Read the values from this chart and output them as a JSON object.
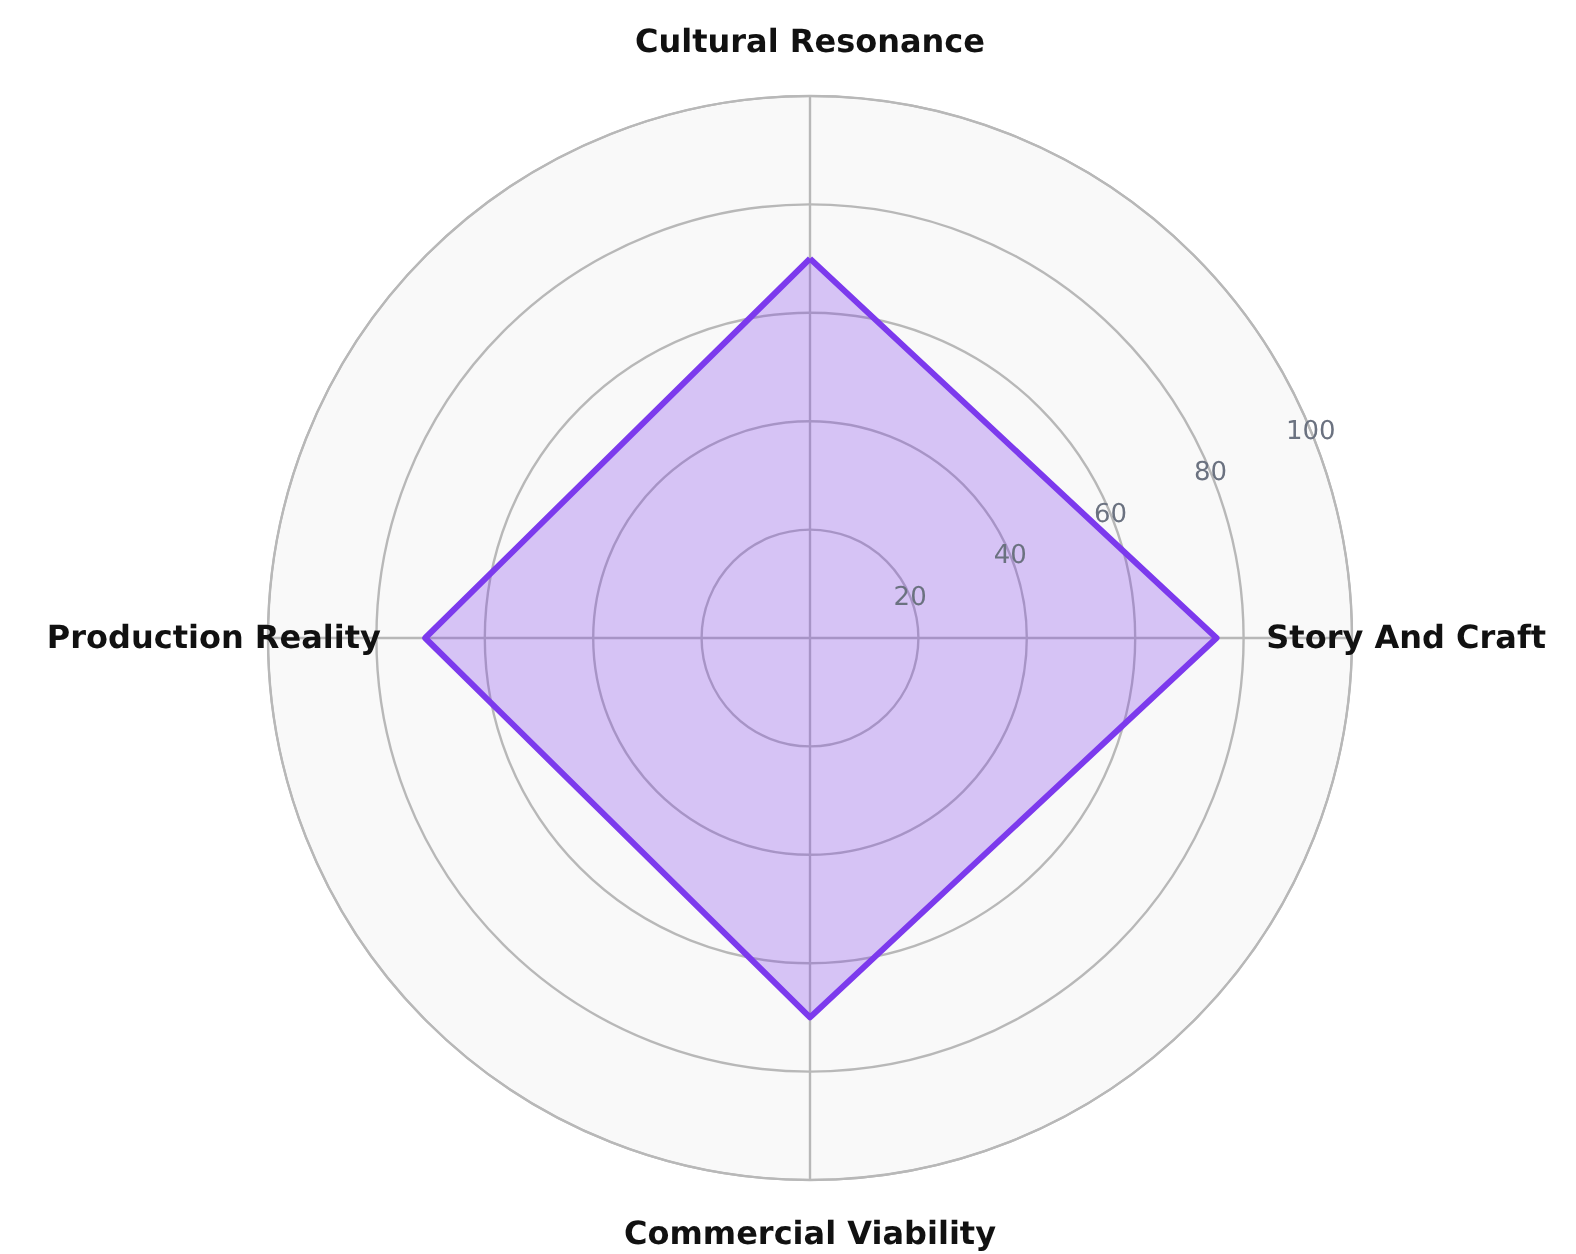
{
  "chart_data": {
    "type": "radar",
    "categories": [
      "Cultural Resonance",
      "Story And Craft",
      "Commercial Viability",
      "Production Reality"
    ],
    "series": [
      {
        "color": "#7c3aed",
        "values": [
          70,
          75,
          70,
          71
        ]
      }
    ],
    "ylim": [
      0,
      100
    ],
    "yticks": [
      20,
      40,
      60,
      80,
      100
    ],
    "grid": true
  }
}
